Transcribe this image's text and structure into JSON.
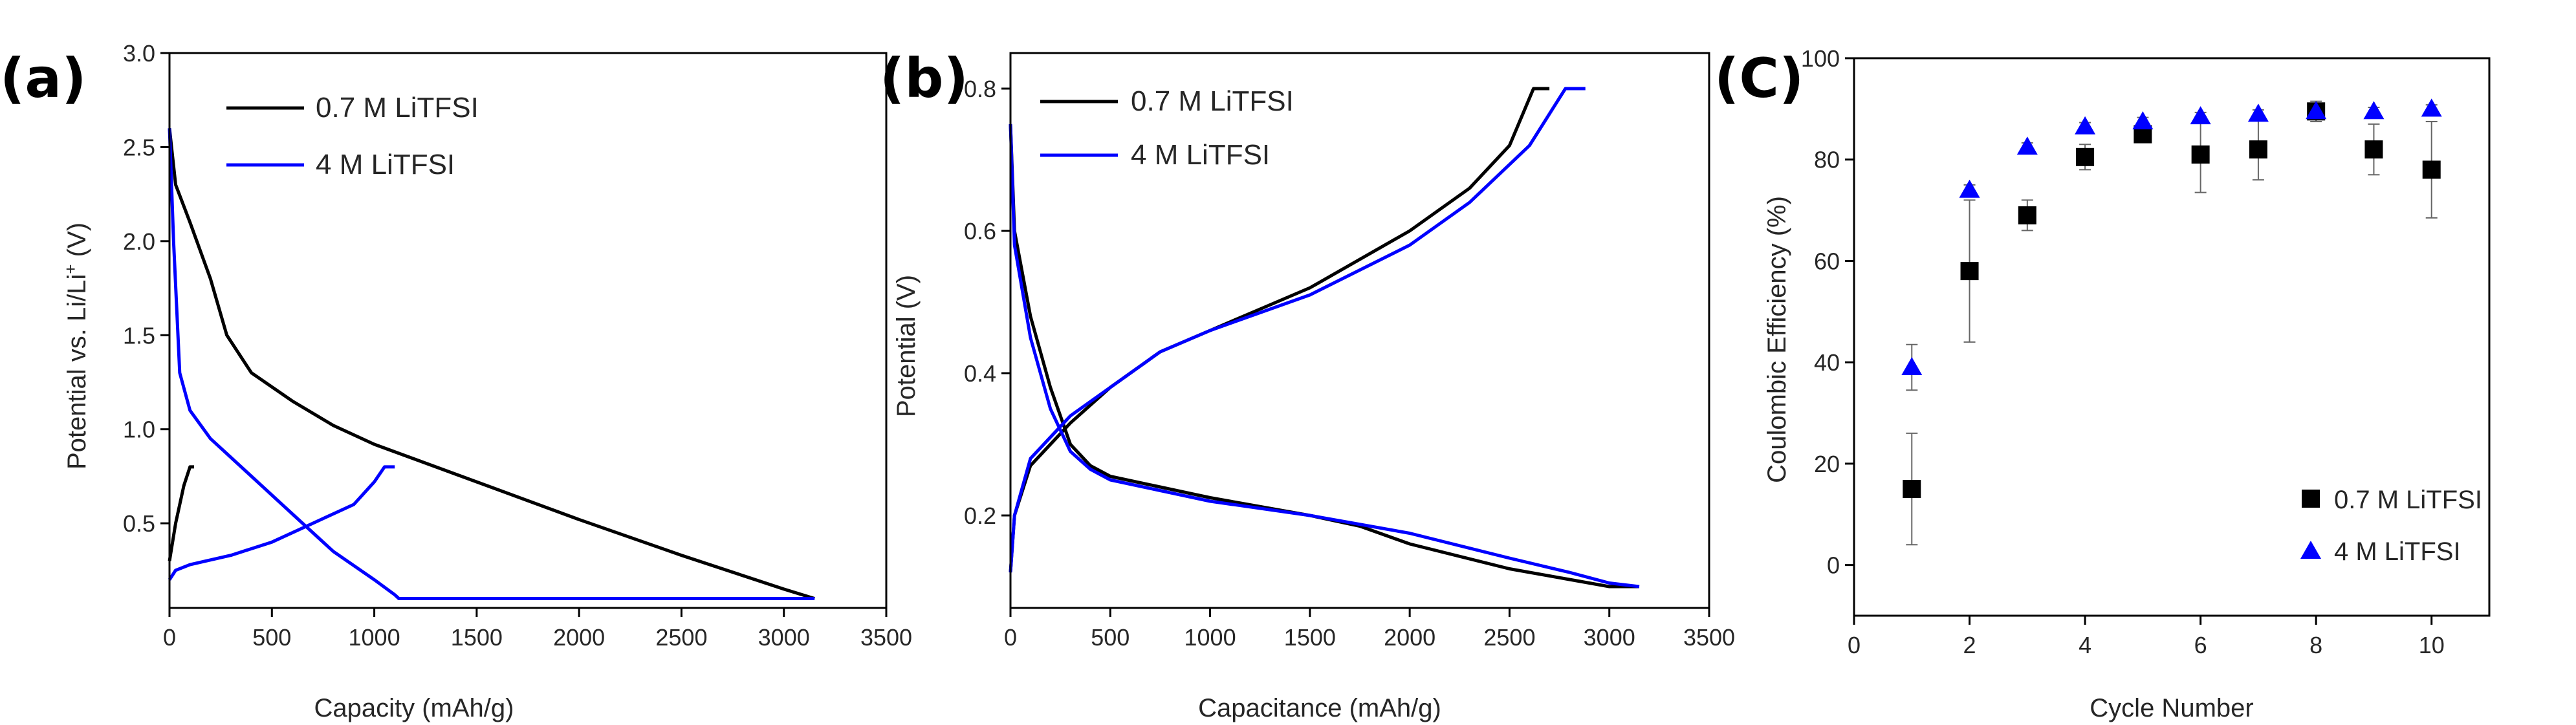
{
  "chart_data": [
    {
      "panel": "(a)",
      "type": "line",
      "xlabel": "Capacity (mAh/g)",
      "ylabel_main": "Potential vs. Li/Li",
      "ylabel_sup": "+",
      "ylabel_tail": " (V)",
      "xlim": [
        0,
        3500
      ],
      "ylim": [
        0.05,
        3.0
      ],
      "xticks": [
        0,
        500,
        1000,
        1500,
        2000,
        2500,
        3000,
        3500
      ],
      "xtick_labels": [
        "0",
        "500",
        "1000",
        "1500",
        "2000",
        "2500",
        "3000",
        "3500"
      ],
      "yticks": [
        0.5,
        1.0,
        1.5,
        2.0,
        2.5,
        3.0
      ],
      "ytick_labels": [
        "0.5",
        "1.0",
        "1.5",
        "2.0",
        "2.5",
        "3.0"
      ],
      "legend_position": "top-left",
      "series": [
        {
          "name": "0.7 M LiTFSI",
          "color": "#000000",
          "segments": [
            [
              [
                0,
                2.6
              ],
              [
                30,
                2.3
              ],
              [
                100,
                2.1
              ],
              [
                200,
                1.8
              ],
              [
                280,
                1.5
              ],
              [
                400,
                1.3
              ],
              [
                600,
                1.15
              ],
              [
                800,
                1.02
              ],
              [
                1000,
                0.92
              ],
              [
                1500,
                0.72
              ],
              [
                2000,
                0.52
              ],
              [
                2500,
                0.33
              ],
              [
                3000,
                0.15
              ],
              [
                3150,
                0.1
              ]
            ],
            [
              [
                0,
                0.3
              ],
              [
                30,
                0.5
              ],
              [
                70,
                0.7
              ],
              [
                100,
                0.8
              ],
              [
                120,
                0.8
              ]
            ]
          ]
        },
        {
          "name": "4 M LiTFSI",
          "color": "#0000ff",
          "segments": [
            [
              [
                0,
                2.6
              ],
              [
                20,
                2.0
              ],
              [
                50,
                1.3
              ],
              [
                100,
                1.1
              ],
              [
                200,
                0.95
              ],
              [
                400,
                0.75
              ],
              [
                600,
                0.55
              ],
              [
                800,
                0.35
              ],
              [
                1000,
                0.2
              ],
              [
                1100,
                0.12
              ],
              [
                1120,
                0.1
              ],
              [
                3150,
                0.1
              ]
            ],
            [
              [
                0,
                0.2
              ],
              [
                30,
                0.25
              ],
              [
                100,
                0.28
              ],
              [
                300,
                0.33
              ],
              [
                500,
                0.4
              ],
              [
                700,
                0.5
              ],
              [
                900,
                0.6
              ],
              [
                1000,
                0.72
              ],
              [
                1050,
                0.8
              ],
              [
                1100,
                0.8
              ]
            ]
          ]
        }
      ]
    },
    {
      "panel": "(b)",
      "type": "line",
      "xlabel": "Capacitance (mAh/g)",
      "ylabel": "Potential (V)",
      "xlim": [
        0,
        3500
      ],
      "ylim": [
        0.07,
        0.85
      ],
      "xticks": [
        0,
        500,
        1000,
        1500,
        2000,
        2500,
        3000,
        3500
      ],
      "xtick_labels": [
        "0",
        "500",
        "1000",
        "1500",
        "2000",
        "2500",
        "3000",
        "3500"
      ],
      "yticks": [
        0.2,
        0.4,
        0.6,
        0.8
      ],
      "ytick_labels": [
        "0.2",
        "0.4",
        "0.6",
        "0.8"
      ],
      "legend_position": "top-left",
      "series": [
        {
          "name": "0.7 M LiTFSI",
          "color": "#000000",
          "segments": [
            [
              [
                0,
                0.75
              ],
              [
                20,
                0.6
              ],
              [
                100,
                0.48
              ],
              [
                200,
                0.38
              ],
              [
                300,
                0.3
              ],
              [
                400,
                0.27
              ],
              [
                500,
                0.255
              ],
              [
                750,
                0.24
              ],
              [
                1000,
                0.225
              ],
              [
                1500,
                0.2
              ],
              [
                1750,
                0.185
              ],
              [
                2000,
                0.16
              ],
              [
                2500,
                0.125
              ],
              [
                2800,
                0.11
              ],
              [
                3000,
                0.1
              ],
              [
                3150,
                0.1
              ]
            ],
            [
              [
                0,
                0.12
              ],
              [
                20,
                0.2
              ],
              [
                100,
                0.27
              ],
              [
                300,
                0.33
              ],
              [
                500,
                0.38
              ],
              [
                750,
                0.43
              ],
              [
                1000,
                0.46
              ],
              [
                1250,
                0.49
              ],
              [
                1500,
                0.52
              ],
              [
                2000,
                0.6
              ],
              [
                2300,
                0.66
              ],
              [
                2500,
                0.72
              ],
              [
                2620,
                0.8
              ],
              [
                2700,
                0.8
              ]
            ]
          ]
        },
        {
          "name": "4 M LiTFSI",
          "color": "#0000ff",
          "segments": [
            [
              [
                0,
                0.75
              ],
              [
                20,
                0.58
              ],
              [
                100,
                0.45
              ],
              [
                200,
                0.35
              ],
              [
                300,
                0.29
              ],
              [
                400,
                0.265
              ],
              [
                500,
                0.25
              ],
              [
                750,
                0.235
              ],
              [
                1000,
                0.22
              ],
              [
                1500,
                0.2
              ],
              [
                2000,
                0.175
              ],
              [
                2500,
                0.14
              ],
              [
                2800,
                0.12
              ],
              [
                3000,
                0.105
              ],
              [
                3150,
                0.1
              ]
            ],
            [
              [
                0,
                0.12
              ],
              [
                20,
                0.2
              ],
              [
                100,
                0.28
              ],
              [
                300,
                0.34
              ],
              [
                500,
                0.38
              ],
              [
                750,
                0.43
              ],
              [
                1000,
                0.46
              ],
              [
                1500,
                0.51
              ],
              [
                2000,
                0.58
              ],
              [
                2300,
                0.64
              ],
              [
                2600,
                0.72
              ],
              [
                2780,
                0.8
              ],
              [
                2880,
                0.8
              ]
            ]
          ]
        }
      ]
    },
    {
      "panel": "(C)",
      "type": "scatter",
      "xlabel": "Cycle Number",
      "ylabel": "Coulombic Efficiency (%)",
      "xlim": [
        0,
        11
      ],
      "ylim": [
        -10,
        100
      ],
      "xticks": [
        0,
        2,
        4,
        6,
        8,
        10
      ],
      "xtick_labels": [
        "0",
        "2",
        "4",
        "6",
        "8",
        "10"
      ],
      "yticks": [
        0,
        20,
        40,
        60,
        80,
        100
      ],
      "ytick_labels": [
        "0",
        "20",
        "40",
        "60",
        "80",
        "100"
      ],
      "legend_position": "bottom-right",
      "x": [
        1,
        2,
        3,
        4,
        5,
        6,
        7,
        8,
        9,
        10
      ],
      "series": [
        {
          "name": "0.7 M LiTFSI",
          "marker": "square",
          "color": "#000000",
          "values": [
            15,
            58,
            69,
            80.5,
            85,
            81,
            82,
            89.5,
            82,
            78
          ],
          "errors": [
            11,
            14,
            3,
            2.5,
            1.5,
            7.5,
            6,
            2,
            5,
            9.5
          ]
        },
        {
          "name": "4 M LiTFSI",
          "marker": "triangle",
          "color": "#0000ff",
          "values": [
            39,
            74,
            82.5,
            86.5,
            87.5,
            88.5,
            89,
            89.5,
            89.5,
            90
          ],
          "errors": [
            4.5,
            1,
            0.8,
            0.8,
            0.8,
            0.8,
            0.8,
            0.8,
            0.8,
            0.8
          ]
        }
      ]
    }
  ]
}
